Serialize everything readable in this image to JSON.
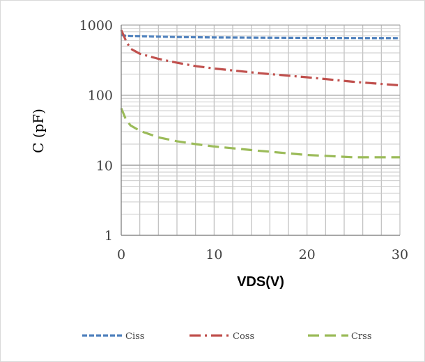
{
  "chart_data": {
    "type": "line",
    "xlabel": "VDS(V)",
    "ylabel": "C (pF)",
    "xlim": [
      0,
      30
    ],
    "ylim": [
      1,
      1000
    ],
    "yscale": "log",
    "xticks": [
      "0",
      "10",
      "20",
      "30"
    ],
    "yticks": [
      "1",
      "10",
      "100",
      "1000"
    ],
    "grid": true,
    "legend_position": "bottom",
    "series": [
      {
        "name": "Ciss",
        "color": "#4f81bd",
        "dash": "dashed",
        "x": [
          0,
          0.5,
          1,
          2,
          4,
          6,
          8,
          10,
          15,
          20,
          25,
          30
        ],
        "y": [
          720,
          705,
          700,
          695,
          685,
          675,
          670,
          665,
          660,
          655,
          652,
          650
        ]
      },
      {
        "name": "Coss",
        "color": "#c0504d",
        "dash": "dash-dot",
        "x": [
          0,
          0.5,
          1,
          2,
          4,
          6,
          8,
          10,
          15,
          20,
          25,
          30
        ],
        "y": [
          850,
          600,
          460,
          390,
          330,
          290,
          260,
          240,
          205,
          180,
          155,
          138
        ]
      },
      {
        "name": "Crss",
        "color": "#9bbb59",
        "dash": "long-dash",
        "x": [
          0,
          0.5,
          1,
          2,
          4,
          6,
          8,
          10,
          15,
          20,
          25,
          30
        ],
        "y": [
          65,
          45,
          37,
          31,
          25,
          22,
          20,
          18.5,
          16,
          14,
          13,
          13
        ]
      }
    ]
  }
}
